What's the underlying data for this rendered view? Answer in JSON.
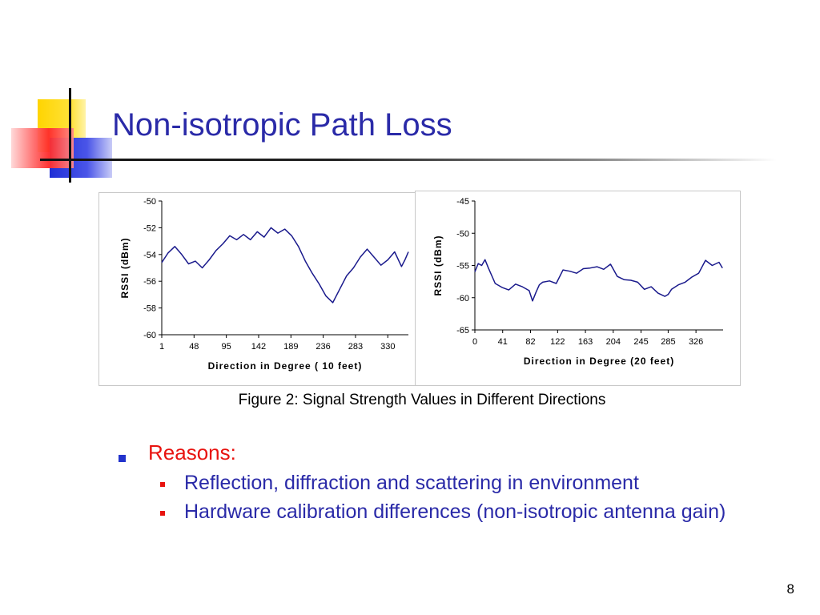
{
  "slide": {
    "title": "Non-isotropic Path Loss",
    "caption": "Figure 2: Signal Strength Values in Different Directions",
    "bullet": "Reasons:",
    "sub_bullets": [
      "Reflection, diffraction and scattering in environment",
      "Hardware calibration differences (non-isotropic antenna gain)"
    ],
    "page_number": "8",
    "colors": {
      "title": "#2a2aa8",
      "bullet": "#e8130f",
      "line": "#1a1a8c"
    }
  },
  "chart_data": [
    {
      "type": "line",
      "xlabel": "Direction in Degree ( 10 feet)",
      "ylabel": "RSSI (dBm)",
      "xlim": [
        1,
        360
      ],
      "ylim": [
        -60,
        -50
      ],
      "xticks": [
        "1",
        "48",
        "95",
        "142",
        "189",
        "236",
        "283",
        "330"
      ],
      "yticks": [
        "-50",
        "-52",
        "-54",
        "-56",
        "-58",
        "-60"
      ],
      "grid": false,
      "x": [
        1,
        10,
        20,
        30,
        40,
        50,
        60,
        70,
        80,
        90,
        100,
        110,
        120,
        130,
        140,
        150,
        160,
        170,
        180,
        190,
        200,
        210,
        220,
        230,
        240,
        250,
        260,
        270,
        280,
        290,
        300,
        310,
        320,
        330,
        340,
        350,
        355,
        360
      ],
      "y": [
        -54.6,
        -53.9,
        -53.4,
        -54.0,
        -54.7,
        -54.5,
        -55.0,
        -54.4,
        -53.7,
        -53.2,
        -52.6,
        -52.9,
        -52.5,
        -52.9,
        -52.3,
        -52.7,
        -52.0,
        -52.4,
        -52.1,
        -52.6,
        -53.4,
        -54.5,
        -55.4,
        -56.2,
        -57.1,
        -57.6,
        -56.6,
        -55.6,
        -55.0,
        -54.2,
        -53.6,
        -54.2,
        -54.8,
        -54.4,
        -53.8,
        -54.9,
        -54.4,
        -53.8
      ]
    },
    {
      "type": "line",
      "xlabel": "Direction in Degree (20 feet)",
      "ylabel": "RSSI (dBm)",
      "xlim": [
        0,
        366
      ],
      "ylim": [
        -65,
        -45
      ],
      "xticks": [
        "0",
        "41",
        "82",
        "122",
        "163",
        "204",
        "245",
        "285",
        "326"
      ],
      "yticks": [
        "-45",
        "-50",
        "-55",
        "-60",
        "-65"
      ],
      "grid": false,
      "x": [
        0,
        5,
        10,
        15,
        20,
        30,
        40,
        50,
        60,
        70,
        80,
        85,
        90,
        95,
        100,
        110,
        120,
        130,
        140,
        150,
        160,
        170,
        180,
        190,
        200,
        210,
        220,
        230,
        240,
        250,
        260,
        270,
        280,
        285,
        290,
        300,
        310,
        320,
        330,
        340,
        350,
        360,
        365
      ],
      "y": [
        -56.0,
        -54.7,
        -55.0,
        -54.1,
        -55.4,
        -57.8,
        -58.4,
        -58.8,
        -57.9,
        -58.3,
        -58.9,
        -60.5,
        -59.2,
        -58.0,
        -57.6,
        -57.4,
        -57.8,
        -55.7,
        -55.9,
        -56.2,
        -55.5,
        -55.4,
        -55.2,
        -55.6,
        -54.8,
        -56.7,
        -57.2,
        -57.3,
        -57.6,
        -58.7,
        -58.3,
        -59.3,
        -59.8,
        -59.5,
        -58.7,
        -58.0,
        -57.6,
        -56.8,
        -56.2,
        -54.2,
        -55.0,
        -54.5,
        -55.4
      ]
    }
  ]
}
